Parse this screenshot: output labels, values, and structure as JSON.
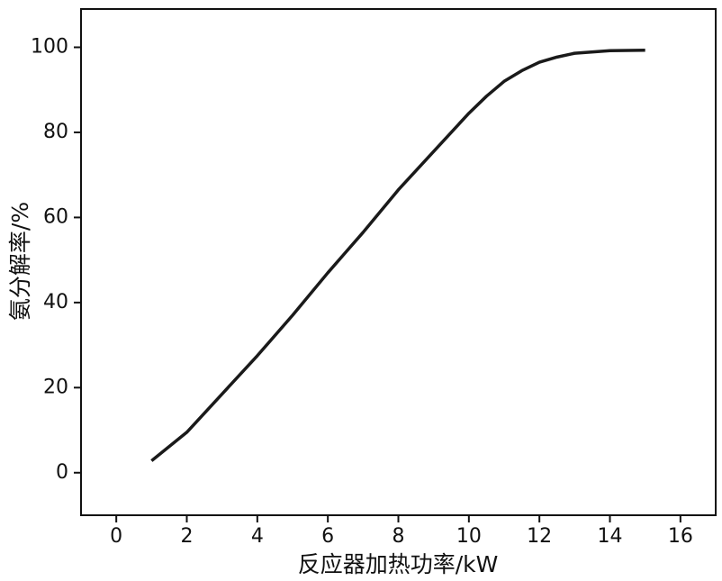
{
  "chart_data": {
    "type": "line",
    "x_label": "反应器加热功率/kW",
    "y_label": "氨分解率/%",
    "x": [
      1,
      2,
      3,
      4,
      5,
      6,
      7,
      8,
      9,
      10,
      10.5,
      11,
      11.5,
      12,
      12.5,
      13,
      14,
      15
    ],
    "series": [
      {
        "color": "#1a1a1a",
        "values": [
          2.8,
          9.5,
          18.5,
          27.5,
          37,
          47,
          56.5,
          66.5,
          75.5,
          84.5,
          88.5,
          92,
          94.5,
          96.5,
          97.7,
          98.6,
          99.2,
          99.3
        ]
      }
    ],
    "xlim": [
      -1,
      17
    ],
    "xticks": [
      0,
      2,
      4,
      6,
      8,
      10,
      12,
      14,
      16
    ],
    "ylim": [
      -10,
      109
    ],
    "yticks": [
      0,
      20,
      40,
      60,
      80,
      100
    ],
    "grid": false
  }
}
